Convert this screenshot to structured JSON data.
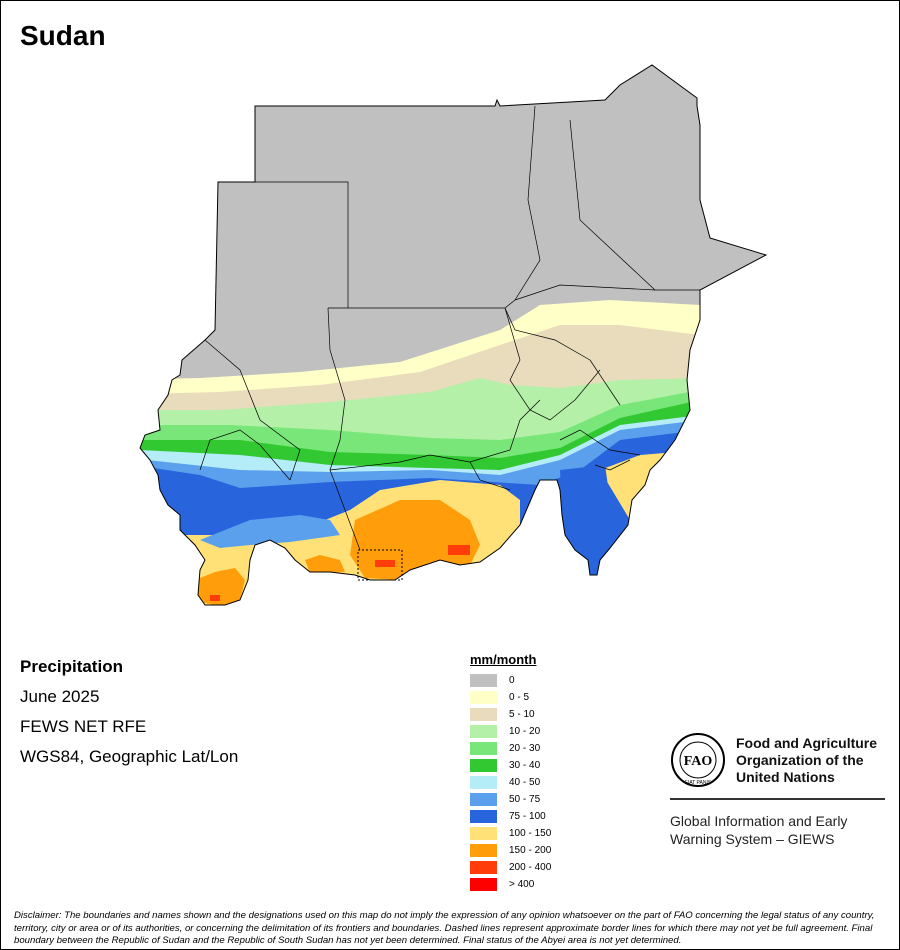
{
  "title": "Sudan",
  "info": {
    "variable": "Precipitation",
    "period": "June 2025",
    "source": "FEWS NET RFE",
    "projection": "WGS84, Geographic Lat/Lon"
  },
  "legend": {
    "title": "mm/month",
    "items": [
      {
        "label": "0",
        "color": "#c0c0c0"
      },
      {
        "label": "0 - 5",
        "color": "#ffffc8"
      },
      {
        "label": "5 - 10",
        "color": "#e8dcbc"
      },
      {
        "label": "10 - 20",
        "color": "#b4f0a8"
      },
      {
        "label": "20 - 30",
        "color": "#78e678"
      },
      {
        "label": "30 - 40",
        "color": "#32c832"
      },
      {
        "label": "40 - 50",
        "color": "#b4ecf8"
      },
      {
        "label": "50 - 75",
        "color": "#5aa0ec"
      },
      {
        "label": "75 - 100",
        "color": "#2864dc"
      },
      {
        "label": "100 - 150",
        "color": "#ffe178"
      },
      {
        "label": "150 - 200",
        "color": "#ff9e0a"
      },
      {
        "label": "200 - 400",
        "color": "#ff3c0a"
      },
      {
        "label": "> 400",
        "color": "#ff0000"
      }
    ]
  },
  "fao": {
    "name_lines": [
      "Food and Agriculture",
      "Organization of the",
      "United Nations"
    ],
    "system_lines": [
      "Global Information and Early",
      "Warning System – GIEWS"
    ],
    "logo_text": "FAO",
    "motto": "FIAT PANIS"
  },
  "disclaimer": "Disclaimer: The boundaries and names shown and the designations used on this map do not imply the expression of any opinion whatsoever on the part of FAO concerning the legal status of any country, territory, city or area or of its authorities, or concerning the delimitation of its frontiers and boundaries. Dashed lines represent approximate border lines for which there may not yet be full agreement.  Final boundary between the Republic of Sudan and the Republic of South Sudan has not yet been determined. Final status of the Abyei area is not yet determined."
}
